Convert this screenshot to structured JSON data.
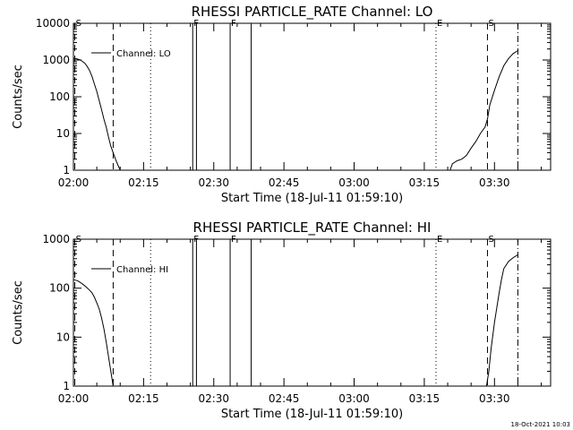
{
  "footer_timestamp": "18-Oct-2021 10:03",
  "chart_data": [
    {
      "type": "line",
      "title": "RHESSI PARTICLE_RATE Channel: LO",
      "xlabel": "Start Time (18-Jul-11 01:59:10)",
      "ylabel": "Counts/sec",
      "x_unit": "minutes after 02:00",
      "xlim": [
        0,
        102
      ],
      "ylim": [
        1,
        10000
      ],
      "yscale": "log",
      "x_ticks": [
        {
          "value": 0,
          "label": "02:00"
        },
        {
          "value": 15,
          "label": "02:15"
        },
        {
          "value": 30,
          "label": "02:30"
        },
        {
          "value": 45,
          "label": "02:45"
        },
        {
          "value": 60,
          "label": "03:00"
        },
        {
          "value": 75,
          "label": "03:15"
        },
        {
          "value": 90,
          "label": "03:30"
        }
      ],
      "y_ticks": [
        {
          "value": 1,
          "label": "1"
        },
        {
          "value": 10,
          "label": "10"
        },
        {
          "value": 100,
          "label": "100"
        },
        {
          "value": 1000,
          "label": "1000"
        },
        {
          "value": 10000,
          "label": "10000"
        }
      ],
      "legend": {
        "position": "top-left",
        "entries": [
          "Channel: LO"
        ]
      },
      "grid": false,
      "markers": [
        {
          "x": 0.3,
          "label": "S",
          "style": "dashed"
        },
        {
          "x": 8.5,
          "label": "",
          "style": "dashed"
        },
        {
          "x": 16.5,
          "label": "",
          "style": "dotted"
        },
        {
          "x": 25.5,
          "label": "F",
          "style": "solid"
        },
        {
          "x": 26.3,
          "label": "",
          "style": "solid"
        },
        {
          "x": 33.5,
          "label": "F",
          "style": "solid"
        },
        {
          "x": 38.0,
          "label": "",
          "style": "solid"
        },
        {
          "x": 77.5,
          "label": "E",
          "style": "dotted"
        },
        {
          "x": 88.5,
          "label": "S",
          "style": "dashed"
        },
        {
          "x": 95.0,
          "label": "",
          "style": "dashdot"
        }
      ],
      "series": [
        {
          "segments": [
            {
              "x": [
                -0.2,
                0.5,
                1,
                1.5,
                2,
                2.5,
                3,
                3.5,
                4,
                4.5,
                5,
                5.5,
                6,
                6.5,
                7,
                7.5,
                8,
                8.5,
                9,
                9.5,
                10
              ],
              "y": [
                1100,
                1100,
                1050,
                1000,
                900,
                800,
                650,
                500,
                350,
                220,
                140,
                80,
                45,
                25,
                15,
                8,
                4.5,
                3,
                2,
                1.4,
                1
              ]
            },
            {
              "x": [
                80.5,
                81,
                82,
                83,
                84,
                85,
                86,
                87,
                88,
                88.5,
                89,
                90,
                91,
                92,
                93,
                94,
                95
              ],
              "y": [
                1,
                1.5,
                1.8,
                2,
                2.5,
                4,
                6,
                10,
                15,
                25,
                60,
                150,
                350,
                700,
                1100,
                1500,
                1800
              ]
            }
          ]
        }
      ]
    },
    {
      "type": "line",
      "title": "RHESSI PARTICLE_RATE Channel: HI",
      "xlabel": "Start Time (18-Jul-11 01:59:10)",
      "ylabel": "Counts/sec",
      "x_unit": "minutes after 02:00",
      "xlim": [
        0,
        102
      ],
      "ylim": [
        1,
        1000
      ],
      "yscale": "log",
      "x_ticks": [
        {
          "value": 0,
          "label": "02:00"
        },
        {
          "value": 15,
          "label": "02:15"
        },
        {
          "value": 30,
          "label": "02:30"
        },
        {
          "value": 45,
          "label": "02:45"
        },
        {
          "value": 60,
          "label": "03:00"
        },
        {
          "value": 75,
          "label": "03:15"
        },
        {
          "value": 90,
          "label": "03:30"
        }
      ],
      "y_ticks": [
        {
          "value": 1,
          "label": "1"
        },
        {
          "value": 10,
          "label": "10"
        },
        {
          "value": 100,
          "label": "100"
        },
        {
          "value": 1000,
          "label": "1000"
        }
      ],
      "legend": {
        "position": "top-left",
        "entries": [
          "Channel: HI"
        ]
      },
      "grid": false,
      "markers": [
        {
          "x": 0.3,
          "label": "S",
          "style": "dashed"
        },
        {
          "x": 8.5,
          "label": "",
          "style": "dashed"
        },
        {
          "x": 16.5,
          "label": "",
          "style": "dotted"
        },
        {
          "x": 25.5,
          "label": "F",
          "style": "solid"
        },
        {
          "x": 26.3,
          "label": "",
          "style": "solid"
        },
        {
          "x": 33.5,
          "label": "F",
          "style": "solid"
        },
        {
          "x": 38.0,
          "label": "",
          "style": "solid"
        },
        {
          "x": 77.5,
          "label": "E",
          "style": "dotted"
        },
        {
          "x": 88.5,
          "label": "S",
          "style": "dashed"
        },
        {
          "x": 95.0,
          "label": "",
          "style": "dashdot"
        }
      ],
      "series": [
        {
          "segments": [
            {
              "x": [
                -0.2,
                0.5,
                1,
                1.5,
                2,
                2.5,
                3,
                3.5,
                4,
                4.5,
                5,
                5.5,
                6,
                6.5,
                7,
                7.5,
                8,
                8.5
              ],
              "y": [
                150,
                145,
                140,
                130,
                120,
                110,
                100,
                90,
                80,
                65,
                50,
                38,
                25,
                15,
                8,
                4,
                2,
                1
              ]
            },
            {
              "x": [
                88.3,
                88.8,
                89.3,
                90,
                90.5,
                91,
                91.5,
                92,
                93,
                94,
                95
              ],
              "y": [
                1,
                2,
                6,
                20,
                40,
                80,
                150,
                250,
                350,
                420,
                480
              ]
            }
          ]
        }
      ]
    }
  ]
}
